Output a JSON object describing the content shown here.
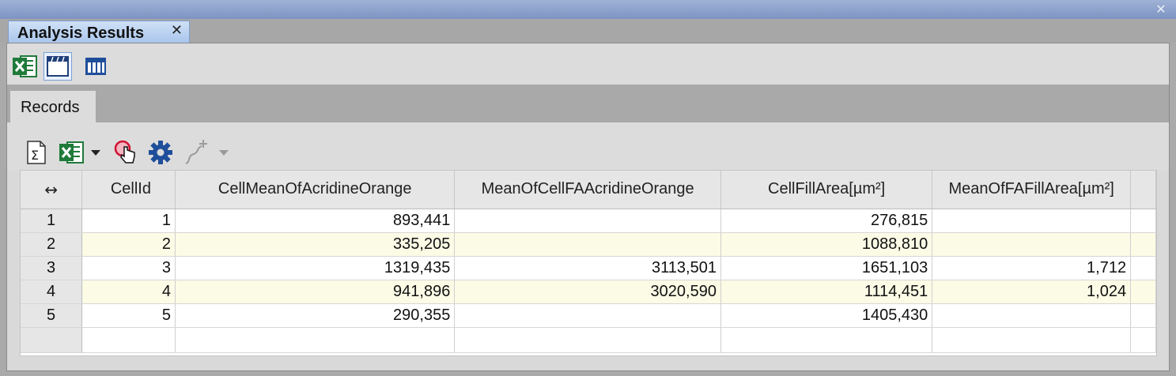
{
  "window": {
    "close_glyph": "✕"
  },
  "document_tab": {
    "title": "Analysis Results",
    "close_glyph": "✕"
  },
  "toolbar": {
    "items": [
      {
        "icon": "excel-export-icon"
      },
      {
        "icon": "records-view-icon",
        "active": true
      },
      {
        "icon": "columns-view-icon"
      }
    ]
  },
  "records_tab": {
    "label": "Records"
  },
  "records_toolbar": {
    "icons": [
      "sum-statistics-icon",
      "excel-export-icon",
      "dropdown-arrow-icon",
      "select-cell-pointer-icon",
      "settings-gear-icon",
      "add-curve-icon",
      "dropdown-arrow-icon"
    ]
  },
  "table": {
    "corner_glyph": "↔",
    "columns": [
      "CellId",
      "CellMeanOfAcridineOrange",
      "MeanOfCellFAAcridineOrange",
      "CellFillArea[µm²]",
      "MeanOfFAFillArea[µm²]"
    ],
    "rows": [
      {
        "num": "1",
        "cells": [
          "1",
          "893,441",
          "",
          "276,815",
          ""
        ]
      },
      {
        "num": "2",
        "cells": [
          "2",
          "335,205",
          "",
          "1088,810",
          ""
        ]
      },
      {
        "num": "3",
        "cells": [
          "3",
          "1319,435",
          "3113,501",
          "1651,103",
          "1,712"
        ]
      },
      {
        "num": "4",
        "cells": [
          "4",
          "941,896",
          "3020,590",
          "1114,451",
          "1,024"
        ]
      },
      {
        "num": "5",
        "cells": [
          "5",
          "290,355",
          "",
          "1405,430",
          ""
        ]
      }
    ]
  },
  "colors": {
    "excel_green": "#1f7a3a",
    "accent_blue": "#1f4e9a",
    "alt_row": "#fbfbe6"
  }
}
